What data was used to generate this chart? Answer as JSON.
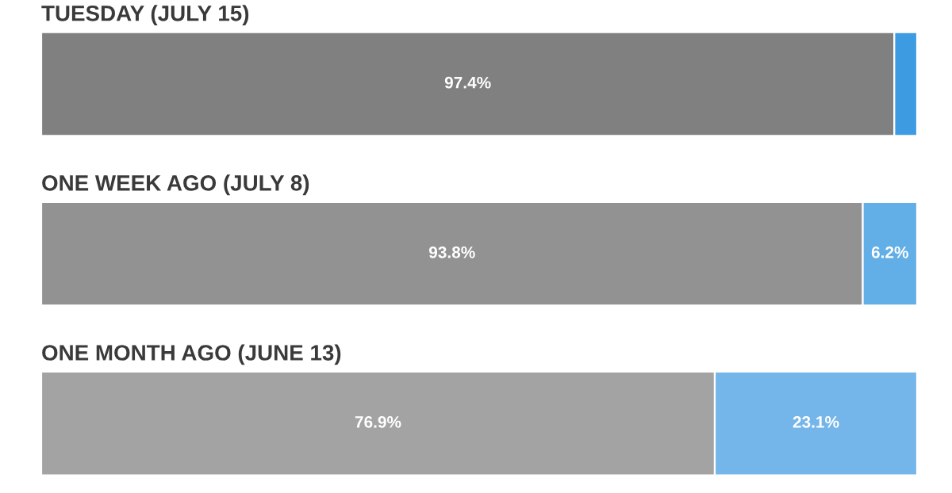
{
  "chart_data": {
    "type": "bar",
    "orientation": "horizontal",
    "stacked": true,
    "categories": [
      "TUESDAY (JULY 15)",
      "ONE WEEK AGO (JULY 8)",
      "ONE MONTH AGO (JUNE 13)"
    ],
    "series": [
      {
        "colors": [
          "#808080",
          "#929292",
          "#a3a3a3"
        ],
        "values": [
          97.4,
          93.8,
          76.9
        ],
        "value_labels": [
          "97.4%",
          "93.8%",
          "76.9%"
        ]
      },
      {
        "colors": [
          "#3d9be1",
          "#62aee6",
          "#74b6ea"
        ],
        "values": [
          2.6,
          6.2,
          23.1
        ],
        "value_labels": [
          null,
          "6.2%",
          "23.1%"
        ]
      }
    ],
    "legend": false,
    "grid": false
  }
}
